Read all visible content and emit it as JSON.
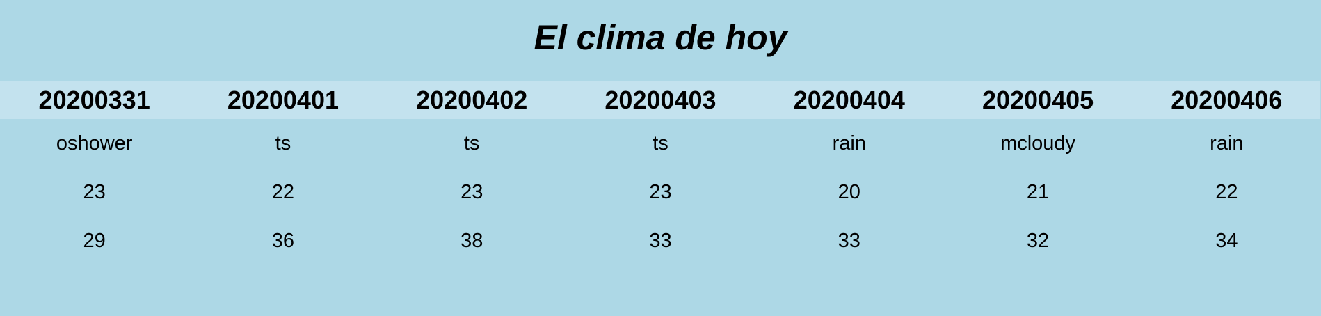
{
  "title": "El clima de hoy",
  "days": [
    {
      "date": "20200331",
      "condition": "oshower",
      "min": "23",
      "max": "29"
    },
    {
      "date": "20200401",
      "condition": "ts",
      "min": "22",
      "max": "36"
    },
    {
      "date": "20200402",
      "condition": "ts",
      "min": "23",
      "max": "38"
    },
    {
      "date": "20200403",
      "condition": "ts",
      "min": "23",
      "max": "33"
    },
    {
      "date": "20200404",
      "condition": "rain",
      "min": "20",
      "max": "33"
    },
    {
      "date": "20200405",
      "condition": "mcloudy",
      "min": "21",
      "max": "32"
    },
    {
      "date": "20200406",
      "condition": "rain",
      "min": "22",
      "max": "34"
    }
  ],
  "colors": {
    "background": "#add8e6",
    "header_band": "#c3e2ee",
    "text": "#000000"
  }
}
